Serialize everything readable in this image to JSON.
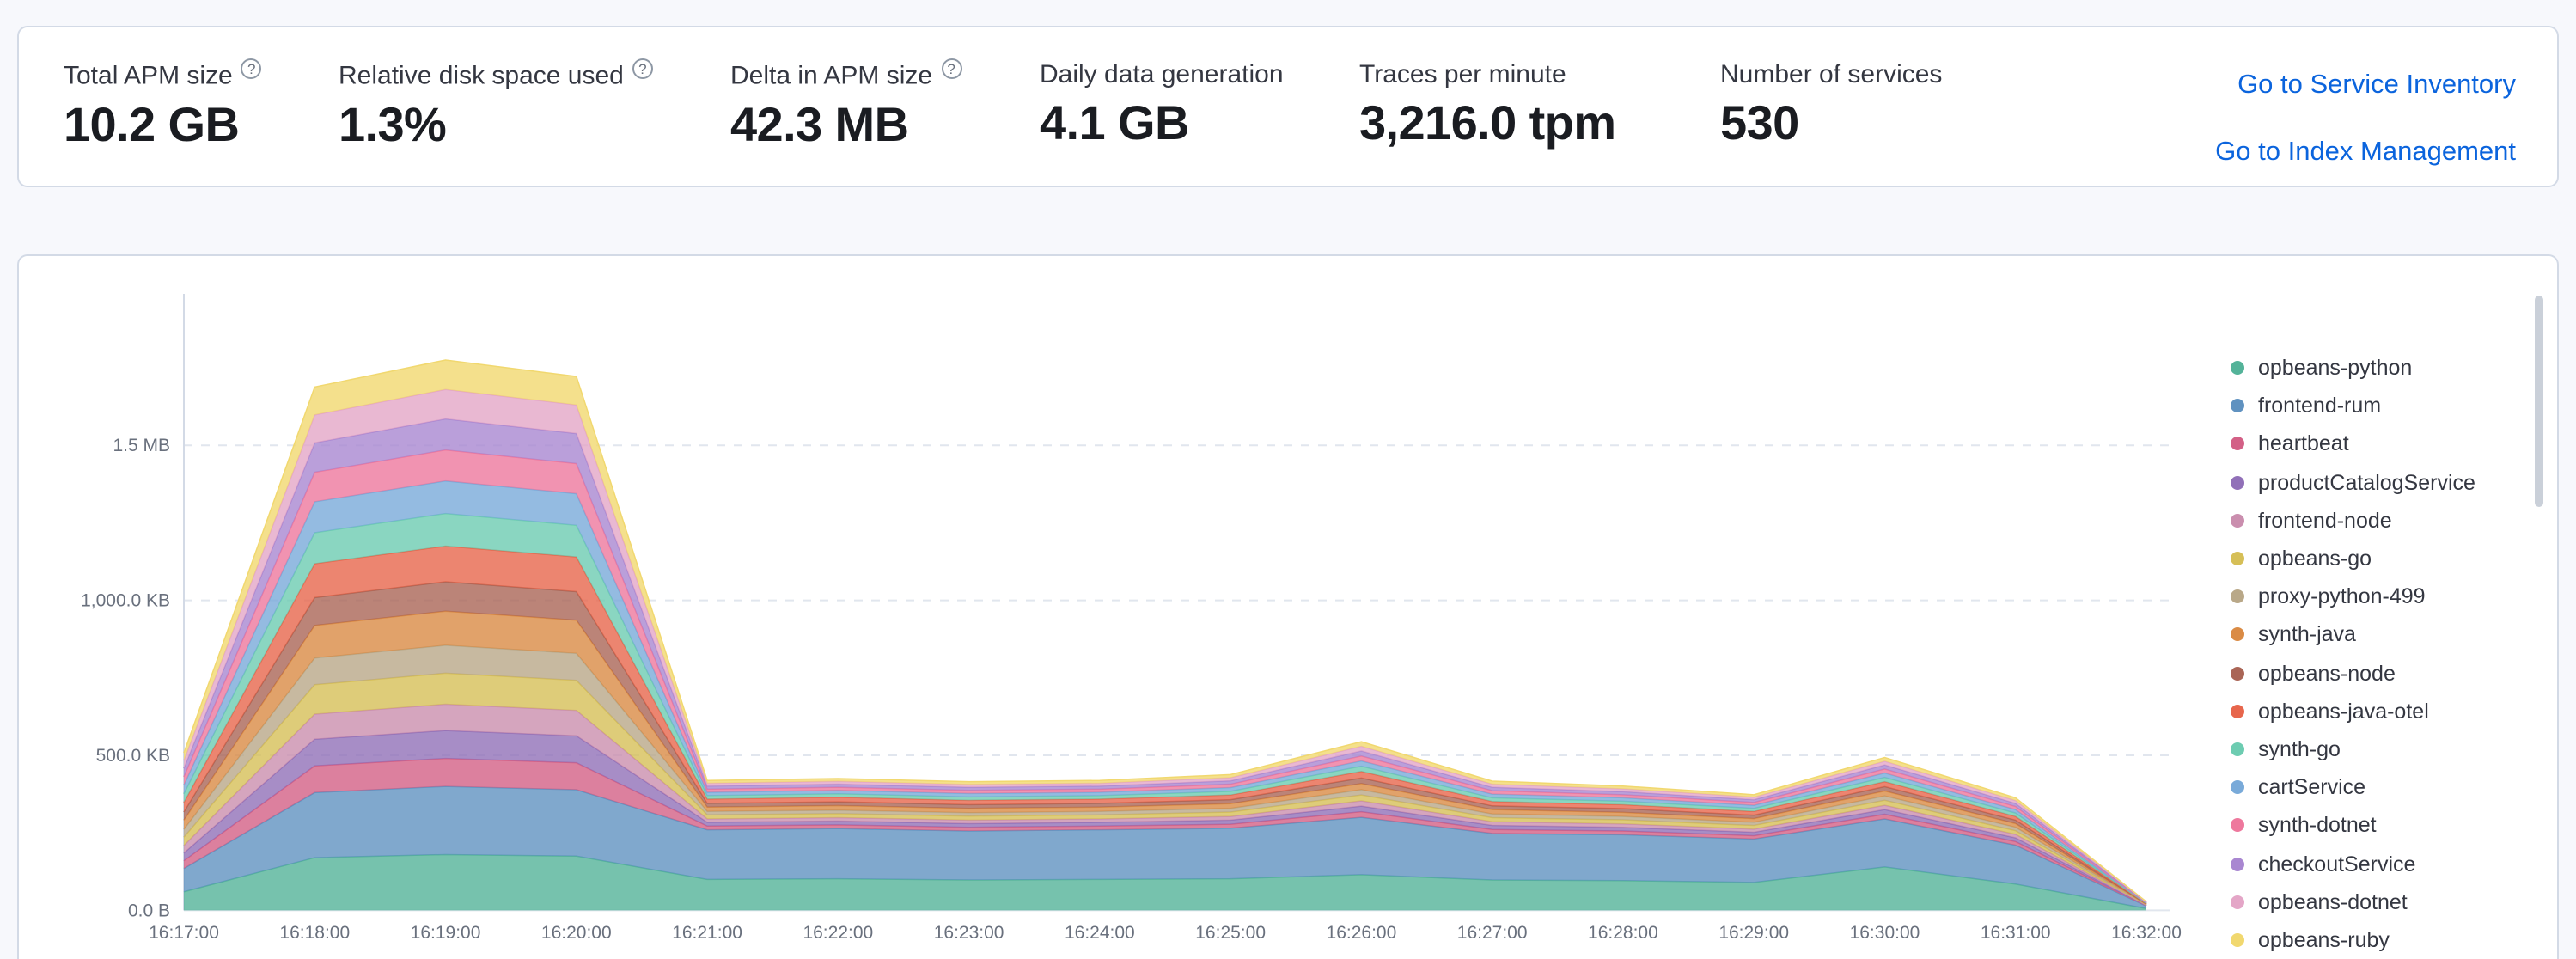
{
  "icons": {
    "help": "?"
  },
  "summary": {
    "link_color": "#0b64dd",
    "metrics": [
      {
        "label": "Total APM size",
        "value": "10.2 GB",
        "has_help": true
      },
      {
        "label": "Relative disk space used",
        "value": "1.3%",
        "has_help": true
      },
      {
        "label": "Delta in APM size",
        "value": "42.3 MB",
        "has_help": true
      },
      {
        "label": "Daily data generation",
        "value": "4.1 GB",
        "has_help": false
      },
      {
        "label": "Traces per minute",
        "value": "3,216.0 tpm",
        "has_help": false
      },
      {
        "label": "Number of services",
        "value": "530",
        "has_help": false
      }
    ],
    "links": [
      {
        "label": "Go to Service Inventory"
      },
      {
        "label": "Go to Index Management"
      }
    ]
  },
  "chart_data": {
    "type": "area",
    "stacked": true,
    "title": "",
    "xlabel": "",
    "ylabel": "",
    "y_unit": "KB",
    "ylim": [
      0,
      1900
    ],
    "grid": "horizontal-dashed",
    "legend_position": "right",
    "legend_scrollable": true,
    "x": [
      "16:17:00",
      "16:18:00",
      "16:19:00",
      "16:20:00",
      "16:21:00",
      "16:22:00",
      "16:23:00",
      "16:24:00",
      "16:25:00",
      "16:26:00",
      "16:27:00",
      "16:28:00",
      "16:29:00",
      "16:30:00",
      "16:31:00",
      "16:32:00"
    ],
    "y_ticks": [
      {
        "value": 0,
        "label": "0.0 B"
      },
      {
        "value": 500,
        "label": "500.0 KB"
      },
      {
        "value": 1000,
        "label": "1,000.0 KB"
      },
      {
        "value": 1500,
        "label": "1.5 MB"
      }
    ],
    "series": [
      {
        "name": "opbeans-python",
        "color": "#54B399",
        "values": [
          60,
          170,
          180,
          175,
          100,
          102,
          98,
          100,
          102,
          115,
          98,
          96,
          90,
          140,
          85,
          6
        ]
      },
      {
        "name": "frontend-rum",
        "color": "#6092C0",
        "values": [
          75,
          210,
          220,
          214,
          160,
          162,
          158,
          160,
          163,
          185,
          150,
          148,
          140,
          155,
          125,
          8
        ]
      },
      {
        "name": "heartbeat",
        "color": "#D36086",
        "values": [
          25,
          86,
          90,
          87,
          12,
          12,
          12,
          12,
          13,
          18,
          13,
          12,
          11,
          15,
          12,
          1
        ]
      },
      {
        "name": "productCatalogService",
        "color": "#9170B8",
        "values": [
          25,
          86,
          90,
          87,
          12,
          12,
          12,
          12,
          13,
          18,
          13,
          12,
          11,
          15,
          12,
          1
        ]
      },
      {
        "name": "frontend-node",
        "color": "#CA8EAE",
        "values": [
          24,
          81,
          85,
          82,
          11,
          11,
          11,
          11,
          12,
          17,
          12,
          11,
          10,
          14,
          11,
          1
        ]
      },
      {
        "name": "opbeans-go",
        "color": "#D6BF57",
        "values": [
          27,
          95,
          100,
          97,
          13,
          13,
          13,
          13,
          14,
          19,
          13,
          13,
          12,
          16,
          12,
          1
        ]
      },
      {
        "name": "proxy-python-499",
        "color": "#B9A888",
        "values": [
          25,
          86,
          90,
          87,
          11,
          11,
          11,
          11,
          12,
          17,
          12,
          11,
          10,
          14,
          11,
          1
        ]
      },
      {
        "name": "synth-java",
        "color": "#DA8B45",
        "values": [
          30,
          105,
          110,
          107,
          14,
          15,
          14,
          14,
          15,
          20,
          14,
          13,
          12,
          16,
          12,
          1
        ]
      },
      {
        "name": "opbeans-node",
        "color": "#AA6556",
        "values": [
          26,
          90,
          95,
          92,
          12,
          12,
          12,
          12,
          13,
          18,
          12,
          12,
          11,
          14,
          11,
          1
        ]
      },
      {
        "name": "opbeans-java-otel",
        "color": "#E7664C",
        "values": [
          31,
          109,
          115,
          112,
          14,
          15,
          14,
          14,
          15,
          21,
          14,
          13,
          12,
          16,
          12,
          1
        ]
      },
      {
        "name": "synth-go",
        "color": "#6DCCB1",
        "values": [
          28,
          100,
          105,
          102,
          11,
          11,
          11,
          11,
          12,
          17,
          12,
          11,
          10,
          14,
          11,
          1
        ]
      },
      {
        "name": "cartService",
        "color": "#79AAD9",
        "values": [
          28,
          100,
          105,
          102,
          11,
          11,
          11,
          11,
          12,
          17,
          12,
          11,
          10,
          14,
          11,
          1
        ]
      },
      {
        "name": "synth-dotnet",
        "color": "#EE789D",
        "values": [
          27,
          95,
          100,
          97,
          10,
          10,
          10,
          10,
          11,
          16,
          11,
          10,
          9,
          13,
          10,
          1
        ]
      },
      {
        "name": "checkoutService",
        "color": "#A987D1",
        "values": [
          27,
          95,
          100,
          97,
          10,
          10,
          10,
          10,
          11,
          16,
          11,
          10,
          9,
          13,
          10,
          1
        ]
      },
      {
        "name": "opbeans-dotnet",
        "color": "#E4A6C7",
        "values": [
          25,
          90,
          95,
          92,
          9,
          9,
          9,
          9,
          10,
          15,
          10,
          9,
          8,
          12,
          9,
          1
        ]
      },
      {
        "name": "opbeans-ruby",
        "color": "#F1D86F",
        "values": [
          25,
          90,
          95,
          92,
          9,
          9,
          9,
          9,
          10,
          15,
          10,
          9,
          8,
          12,
          9,
          1
        ]
      }
    ]
  }
}
